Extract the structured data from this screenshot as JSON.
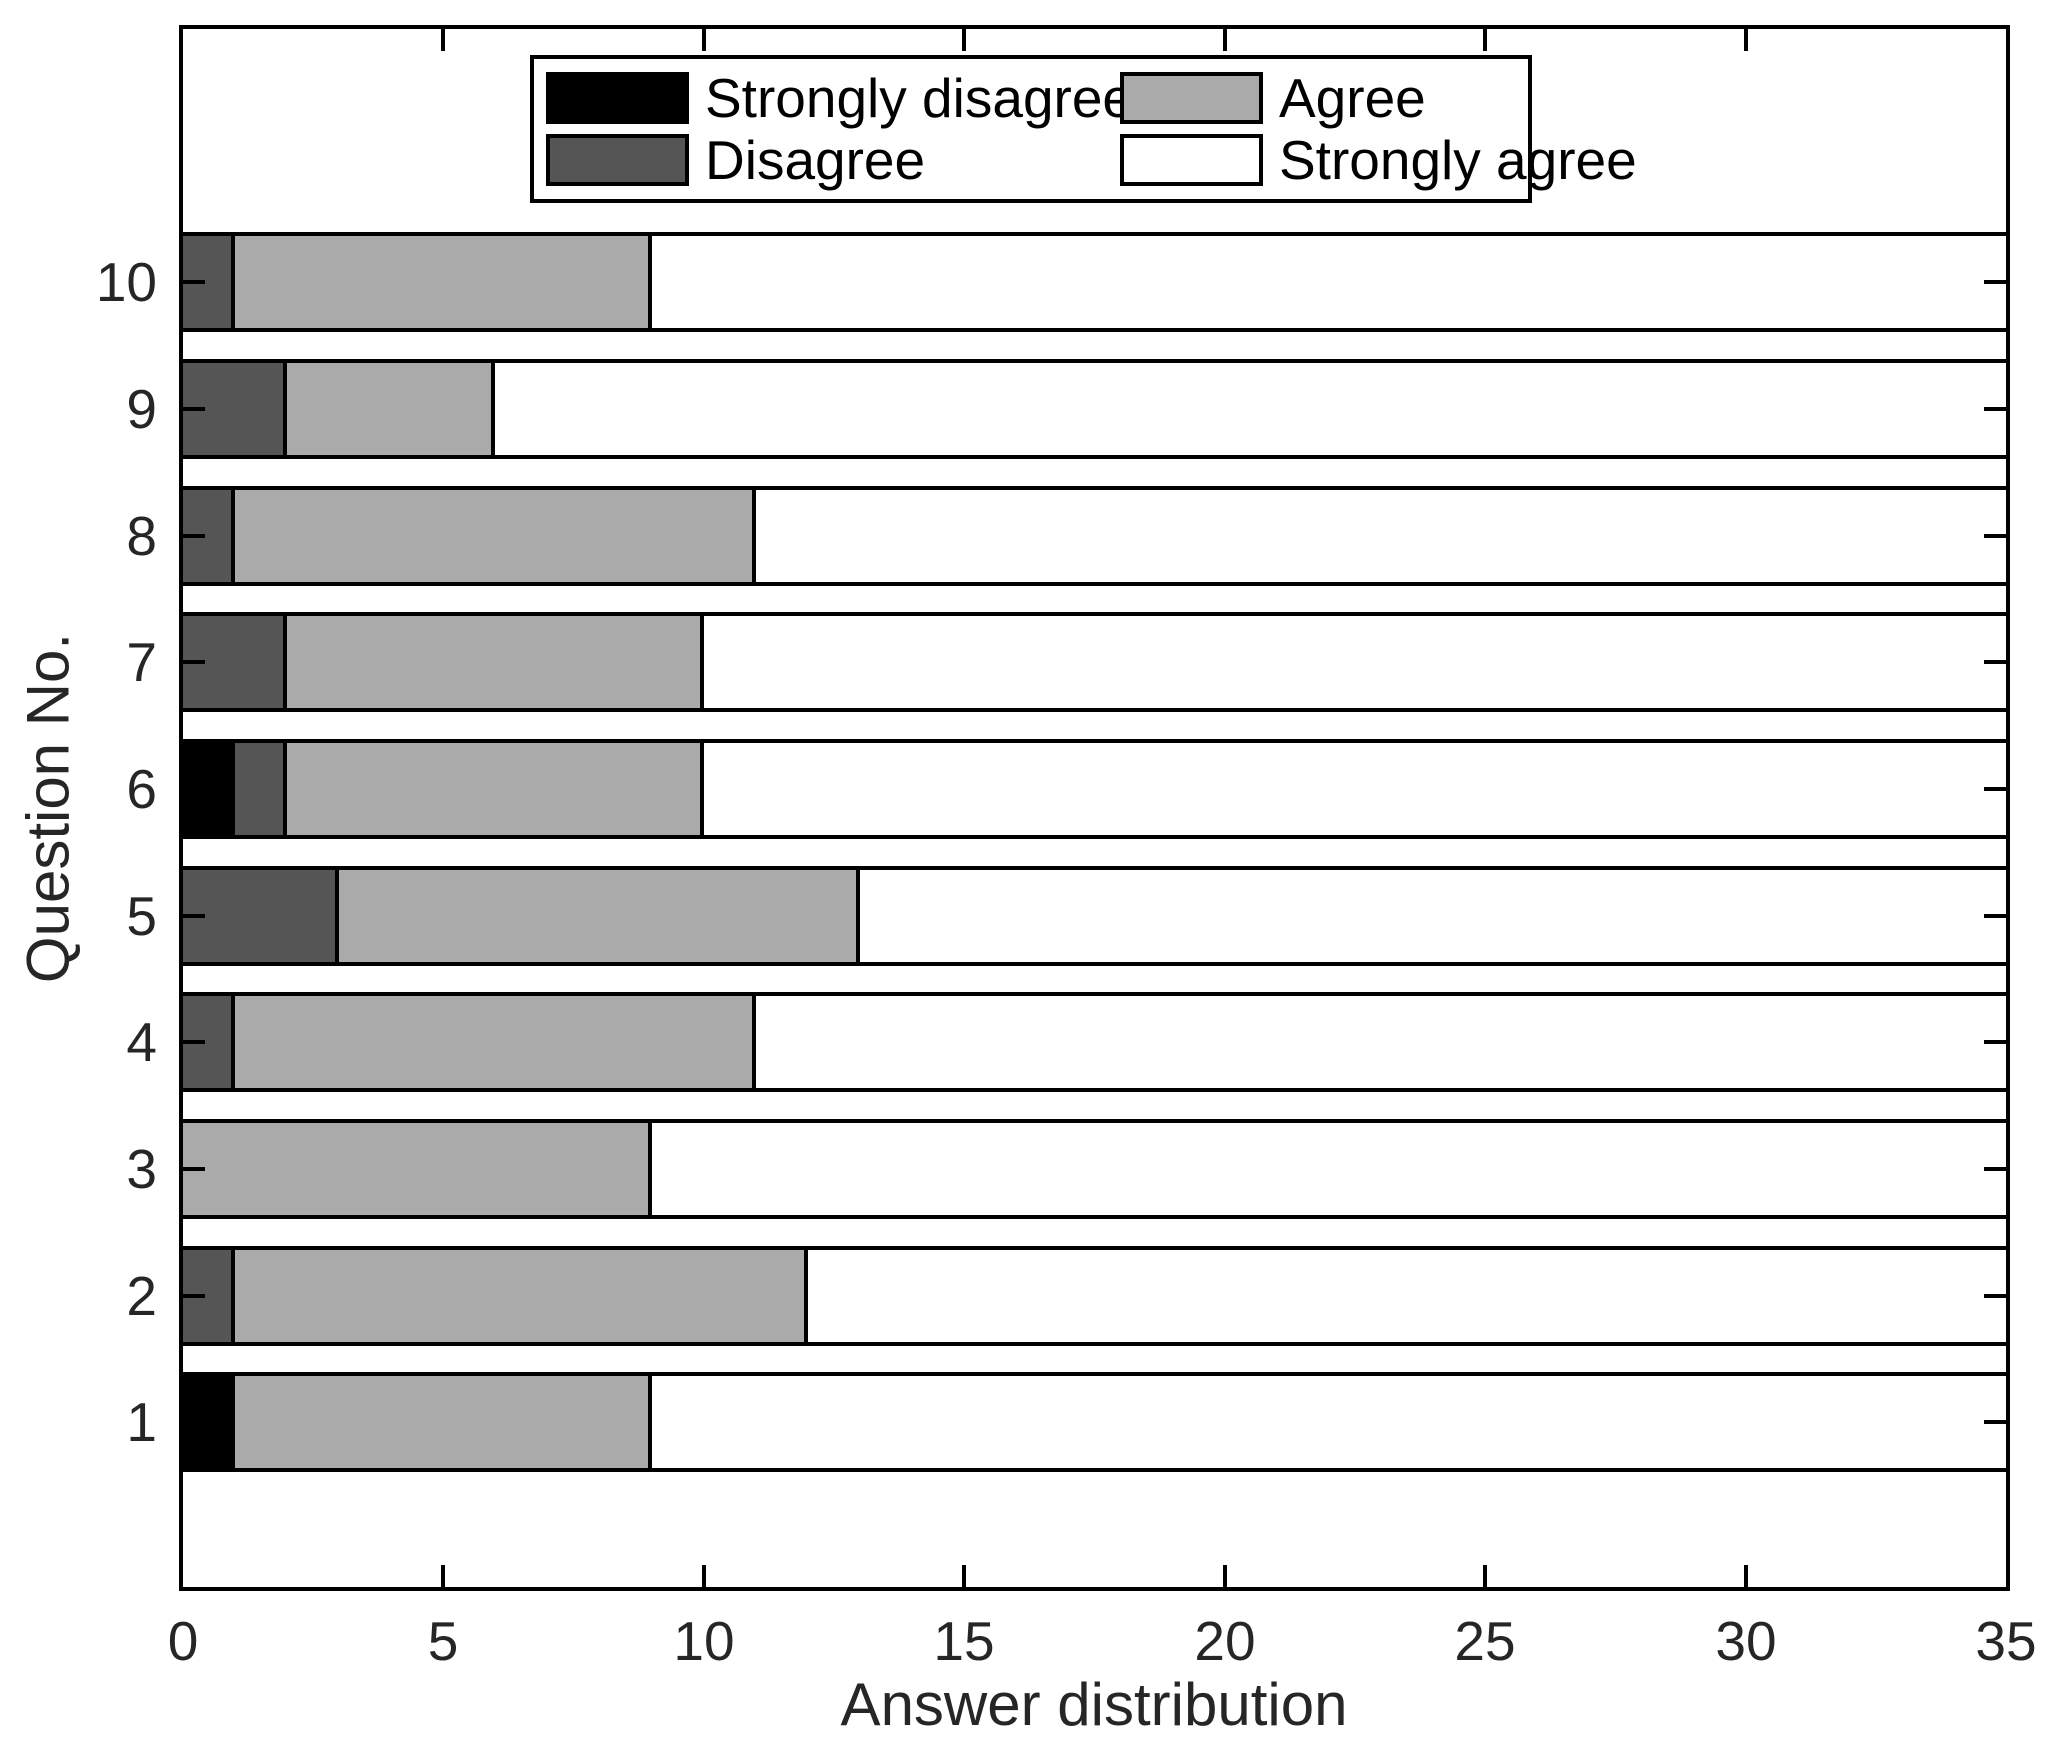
{
  "figure": {
    "xlabel": "Answer distribution",
    "ylabel": "Question No.",
    "background": "#ffffff",
    "axis_color": "#000000",
    "text_color": "#262626"
  },
  "chart_data": {
    "type": "bar",
    "orientation": "horizontal",
    "stacked": true,
    "title": "",
    "xlabel": "Answer distribution",
    "ylabel": "Question No.",
    "categories": [
      1,
      2,
      3,
      4,
      5,
      6,
      7,
      8,
      9,
      10
    ],
    "series": [
      {
        "name": "Strongly disagree",
        "color": "#000000",
        "values": [
          1,
          0,
          0,
          0,
          0,
          1,
          0,
          0,
          0,
          0
        ]
      },
      {
        "name": "Disagree",
        "color": "#555555",
        "values": [
          0,
          1,
          0,
          1,
          3,
          1,
          2,
          1,
          2,
          1
        ]
      },
      {
        "name": "Agree",
        "color": "#aaaaaa",
        "values": [
          8,
          11,
          9,
          10,
          10,
          8,
          8,
          10,
          4,
          8
        ]
      },
      {
        "name": "Strongly agree",
        "color": "#ffffff",
        "values": [
          26,
          23,
          26,
          24,
          22,
          25,
          25,
          24,
          29,
          26
        ]
      }
    ],
    "totals_per_category": [
      35,
      35,
      35,
      35,
      35,
      35,
      35,
      35,
      35,
      35
    ],
    "xlim": [
      0,
      35
    ],
    "xticks": [
      0,
      5,
      10,
      15,
      20,
      25,
      30,
      35
    ],
    "yticks": [
      1,
      2,
      3,
      4,
      5,
      6,
      7,
      8,
      9,
      10
    ],
    "ylim": [
      -0.3,
      12.0
    ],
    "bar_height": 0.79,
    "grid": false,
    "box": true,
    "tick_direction": "in",
    "edge_color": "#000000",
    "legend_position": "top-inside"
  },
  "legend": {
    "entries": [
      {
        "label": "Strongly disagree",
        "color": "#000000"
      },
      {
        "label": "Disagree",
        "color": "#555555"
      },
      {
        "label": "Agree",
        "color": "#aaaaaa"
      },
      {
        "label": "Strongly agree",
        "color": "#ffffff"
      }
    ]
  }
}
